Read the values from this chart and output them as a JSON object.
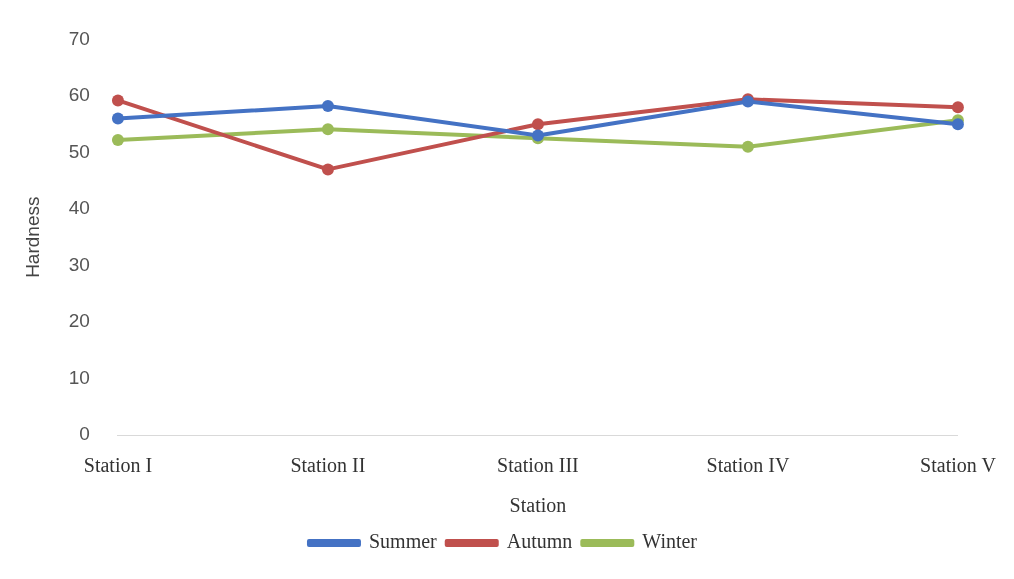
{
  "chart_data": {
    "type": "line",
    "xlabel": "Station",
    "ylabel": "Hardness",
    "categories": [
      "Station I",
      "Station II",
      "Station III",
      "Station IV",
      "Station V"
    ],
    "series": [
      {
        "name": "Summer",
        "color": "#4472c4",
        "values": [
          56,
          58.2,
          53,
          59,
          55
        ]
      },
      {
        "name": "Autumn",
        "color": "#c0504d",
        "values": [
          59.2,
          47,
          55,
          59.4,
          58
        ]
      },
      {
        "name": "Winter",
        "color": "#9bbb59",
        "values": [
          52.2,
          54.1,
          52.5,
          51,
          55.7
        ]
      }
    ],
    "ylim": [
      0,
      70
    ],
    "yticks": [
      0,
      10,
      20,
      30,
      40,
      50,
      60,
      70
    ],
    "grid": false,
    "legend": "bottom",
    "marker": "circle",
    "line_style": "solid"
  }
}
